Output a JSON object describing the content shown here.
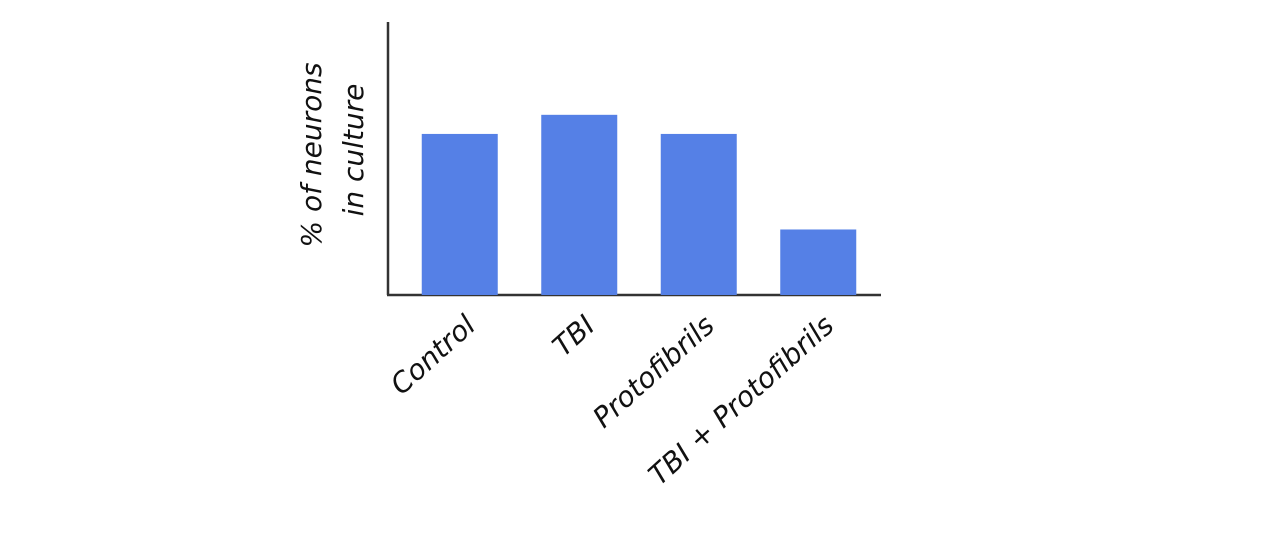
{
  "chart_data": {
    "type": "bar",
    "y_label": [
      "% of neurons",
      "in culture"
    ],
    "categories": [
      "Control",
      "TBI",
      "Protofibrils",
      "TBI + Protofibrils"
    ],
    "values": [
      59,
      66,
      59,
      24
    ],
    "color": "#5580e6",
    "ylim": [
      0,
      100
    ]
  }
}
